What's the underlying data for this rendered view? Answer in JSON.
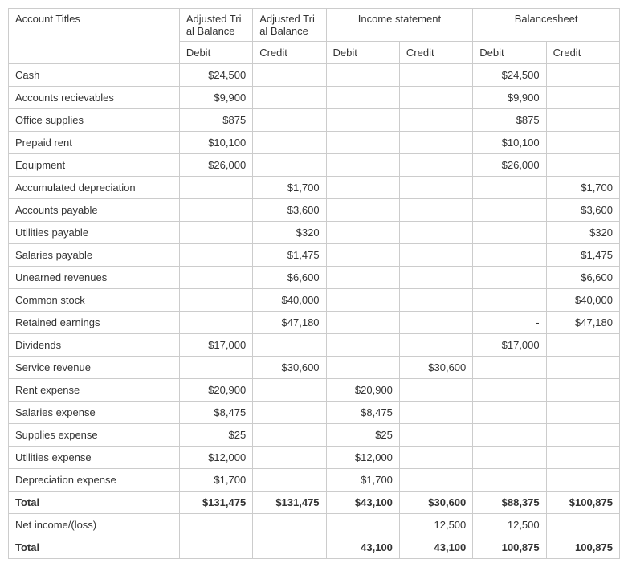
{
  "headers": {
    "account_titles": "Account Titles",
    "adj_trial": "Adjusted Tri\nal Balance",
    "income_stmt": "Income statement",
    "balance_sheet": "Balancesheet",
    "debit": "Debit",
    "credit": "Credit"
  },
  "rows": [
    {
      "label": "Cash",
      "atb_d": "$24,500",
      "atb_c": "",
      "is_d": "",
      "is_c": "",
      "bs_d": "$24,500",
      "bs_c": ""
    },
    {
      "label": "Accounts recievables",
      "atb_d": "$9,900",
      "atb_c": "",
      "is_d": "",
      "is_c": "",
      "bs_d": "$9,900",
      "bs_c": ""
    },
    {
      "label": "Office supplies",
      "atb_d": "$875",
      "atb_c": "",
      "is_d": "",
      "is_c": "",
      "bs_d": "$875",
      "bs_c": ""
    },
    {
      "label": "Prepaid rent",
      "atb_d": "$10,100",
      "atb_c": "",
      "is_d": "",
      "is_c": "",
      "bs_d": "$10,100",
      "bs_c": ""
    },
    {
      "label": "Equipment",
      "atb_d": "$26,000",
      "atb_c": "",
      "is_d": "",
      "is_c": "",
      "bs_d": "$26,000",
      "bs_c": ""
    },
    {
      "label": "Accumulated depreciation",
      "atb_d": "",
      "atb_c": "$1,700",
      "is_d": "",
      "is_c": "",
      "bs_d": "",
      "bs_c": "$1,700"
    },
    {
      "label": "Accounts payable",
      "atb_d": "",
      "atb_c": "$3,600",
      "is_d": "",
      "is_c": "",
      "bs_d": "",
      "bs_c": "$3,600"
    },
    {
      "label": "Utilities payable",
      "atb_d": "",
      "atb_c": "$320",
      "is_d": "",
      "is_c": "",
      "bs_d": "",
      "bs_c": "$320"
    },
    {
      "label": "Salaries payable",
      "atb_d": "",
      "atb_c": "$1,475",
      "is_d": "",
      "is_c": "",
      "bs_d": "",
      "bs_c": "$1,475"
    },
    {
      "label": "Unearned revenues",
      "atb_d": "",
      "atb_c": "$6,600",
      "is_d": "",
      "is_c": "",
      "bs_d": "",
      "bs_c": "$6,600"
    },
    {
      "label": "Common stock",
      "atb_d": "",
      "atb_c": "$40,000",
      "is_d": "",
      "is_c": "",
      "bs_d": "",
      "bs_c": "$40,000"
    },
    {
      "label": "Retained earnings",
      "atb_d": "",
      "atb_c": "$47,180",
      "is_d": "",
      "is_c": "",
      "bs_d": "-",
      "bs_c": "$47,180"
    },
    {
      "label": "Dividends",
      "atb_d": "$17,000",
      "atb_c": "",
      "is_d": "",
      "is_c": "",
      "bs_d": "$17,000",
      "bs_c": ""
    },
    {
      "label": "Service revenue",
      "atb_d": "",
      "atb_c": "$30,600",
      "is_d": "",
      "is_c": "$30,600",
      "bs_d": "",
      "bs_c": ""
    },
    {
      "label": "Rent expense",
      "atb_d": "$20,900",
      "atb_c": "",
      "is_d": "$20,900",
      "is_c": "",
      "bs_d": "",
      "bs_c": ""
    },
    {
      "label": "Salaries expense",
      "atb_d": "$8,475",
      "atb_c": "",
      "is_d": "$8,475",
      "is_c": "",
      "bs_d": "",
      "bs_c": ""
    },
    {
      "label": "Supplies expense",
      "atb_d": "$25",
      "atb_c": "",
      "is_d": "$25",
      "is_c": "",
      "bs_d": "",
      "bs_c": ""
    },
    {
      "label": "Utilities  expense",
      "atb_d": "$12,000",
      "atb_c": "",
      "is_d": "$12,000",
      "is_c": "",
      "bs_d": "",
      "bs_c": ""
    },
    {
      "label": "Depreciation expense",
      "atb_d": "$1,700",
      "atb_c": "",
      "is_d": "$1,700",
      "is_c": "",
      "bs_d": "",
      "bs_c": ""
    }
  ],
  "total1": {
    "label": "Total",
    "atb_d": "$131,475",
    "atb_c": "$131,475",
    "is_d": "$43,100",
    "is_c": "$30,600",
    "bs_d": "$88,375",
    "bs_c": "$100,875"
  },
  "netincome": {
    "label": "Net income/(loss)",
    "atb_d": "",
    "atb_c": "",
    "is_d": "",
    "is_c": "12,500",
    "bs_d": "12,500",
    "bs_c": ""
  },
  "total2": {
    "label": "Total",
    "atb_d": "",
    "atb_c": "",
    "is_d": "43,100",
    "is_c": "43,100",
    "bs_d": "100,875",
    "bs_c": "100,875"
  }
}
